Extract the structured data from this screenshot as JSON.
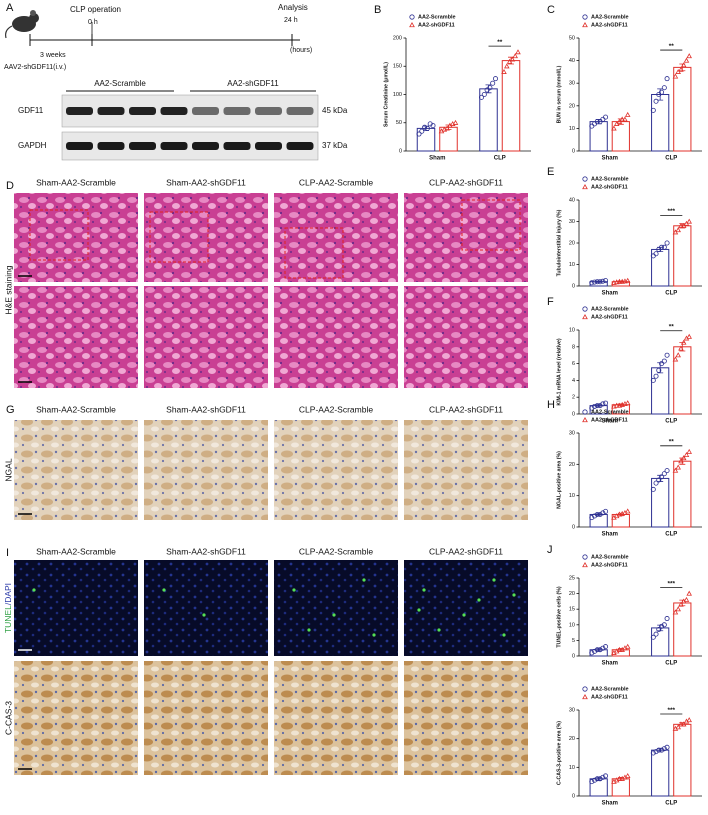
{
  "panel_labels": [
    "A",
    "D",
    "G",
    "I"
  ],
  "timeline": {
    "event": "CLP operation",
    "start": "0 h",
    "end_event": "Analysis",
    "end": "24 h",
    "unit": "(hours)",
    "interval": "3 weeks",
    "treatment": "AAV2-shGDF11(i.v.)"
  },
  "western_blot": {
    "groups": [
      "AA2-Scramble",
      "AA2-shGDF11"
    ],
    "proteins": [
      "GDF11",
      "GAPDH"
    ],
    "sizes": [
      "45 kDa",
      "37 kDa"
    ]
  },
  "micrographs": {
    "columns": [
      "Sham-AA2-Scramble",
      "Sham-AA2-shGDF11",
      "CLP-AA2-Scramble",
      "CLP-AA2-shGDF11"
    ],
    "rows": [
      "H&E staining",
      "NGAL",
      "TUNEL",
      "/DAPI",
      "C-CAS-3"
    ]
  },
  "chart_data": [
    {
      "type": "bar",
      "panel_label": "B",
      "y_label": "Serum Creatinine (μmol/L)",
      "categories": [
        "Sham",
        "CLP"
      ],
      "ylim": [
        0,
        200
      ],
      "yticks": [
        0,
        50,
        100,
        150,
        200
      ],
      "significance": "**",
      "series": [
        {
          "name": "AA2-Scramble",
          "color": "#2e3192",
          "marker": "circle",
          "values": [
            40,
            110
          ],
          "errors": [
            4,
            7
          ],
          "points": [
            [
              30,
              35,
              42,
              40,
              48,
              45
            ],
            [
              95,
              100,
              108,
              112,
              120,
              128
            ]
          ]
        },
        {
          "name": "AA2-shGDF11",
          "color": "#e0312b",
          "marker": "triangle",
          "values": [
            42,
            160
          ],
          "errors": [
            4,
            6
          ],
          "points": [
            [
              35,
              38,
              40,
              45,
              48,
              50
            ],
            [
              140,
              150,
              158,
              162,
              168,
              175
            ]
          ]
        }
      ]
    },
    {
      "type": "bar",
      "panel_label": "C",
      "y_label": "BUN in serum (mmol/L)",
      "categories": [
        "Sham",
        "CLP"
      ],
      "ylim": [
        0,
        50
      ],
      "yticks": [
        0,
        10,
        20,
        30,
        40,
        50
      ],
      "significance": "**",
      "series": [
        {
          "name": "AA2-Scramble",
          "color": "#2e3192",
          "marker": "circle",
          "values": [
            13,
            25
          ],
          "errors": [
            1,
            2.5
          ],
          "points": [
            [
              11,
              12,
              13,
              13,
              14,
              15
            ],
            [
              18,
              22,
              25,
              26,
              28,
              32
            ]
          ]
        },
        {
          "name": "AA2-shGDF11",
          "color": "#e0312b",
          "marker": "triangle",
          "values": [
            13,
            37
          ],
          "errors": [
            1.2,
            1.5
          ],
          "points": [
            [
              10,
              12,
              13,
              14,
              14,
              16
            ],
            [
              33,
              35,
              36,
              38,
              40,
              42
            ]
          ]
        }
      ]
    },
    {
      "type": "bar",
      "panel_label": "E",
      "y_label": "Tubulointerstitial injury (%)",
      "categories": [
        "Sham",
        "CLP"
      ],
      "ylim": [
        0,
        40
      ],
      "yticks": [
        0,
        10,
        20,
        30,
        40
      ],
      "significance": "***",
      "series": [
        {
          "name": "AA2-Scramble",
          "color": "#2e3192",
          "marker": "circle",
          "values": [
            2,
            17
          ],
          "errors": [
            0.3,
            1
          ],
          "points": [
            [
              1.5,
              1.8,
              2,
              2,
              2.2,
              2.5
            ],
            [
              14,
              15,
              17,
              18,
              18,
              20
            ]
          ]
        },
        {
          "name": "AA2-shGDF11",
          "color": "#e0312b",
          "marker": "triangle",
          "values": [
            2,
            28
          ],
          "errors": [
            0.3,
            1
          ],
          "points": [
            [
              1.5,
              1.8,
              2,
              2,
              2.2,
              2.5
            ],
            [
              25,
              26,
              28,
              28,
              29,
              30
            ]
          ]
        }
      ]
    },
    {
      "type": "bar",
      "panel_label": "F",
      "y_label": "KIM-1 mRNA level (relative)",
      "categories": [
        "Sham",
        "CLP"
      ],
      "ylim": [
        0,
        10
      ],
      "yticks": [
        0,
        2,
        4,
        6,
        8,
        10
      ],
      "significance": "**",
      "series": [
        {
          "name": "AA2-Scramble",
          "color": "#2e3192",
          "marker": "circle",
          "values": [
            1,
            5.5
          ],
          "errors": [
            0.15,
            0.6
          ],
          "points": [
            [
              0.7,
              0.9,
              1,
              1,
              1.2,
              1.3
            ],
            [
              4,
              4.5,
              5.2,
              6,
              6.3,
              7
            ]
          ]
        },
        {
          "name": "AA2-shGDF11",
          "color": "#e0312b",
          "marker": "triangle",
          "values": [
            1.1,
            8
          ],
          "errors": [
            0.1,
            0.5
          ],
          "points": [
            [
              0.9,
              1,
              1,
              1.1,
              1.2,
              1.3
            ],
            [
              6.5,
              7,
              7.8,
              8.5,
              9,
              9.2
            ]
          ]
        }
      ]
    },
    {
      "type": "bar",
      "panel_label": "H",
      "y_label": "NGAL-positive area (%)",
      "categories": [
        "Sham",
        "CLP"
      ],
      "ylim": [
        0,
        30
      ],
      "yticks": [
        0,
        10,
        20,
        30
      ],
      "significance": "**",
      "series": [
        {
          "name": "AA2-Scramble",
          "color": "#2e3192",
          "marker": "circle",
          "values": [
            4,
            15.5
          ],
          "errors": [
            0.4,
            1
          ],
          "points": [
            [
              3,
              3.5,
              4,
              4,
              4.5,
              5
            ],
            [
              12,
              14,
              15,
              16,
              17,
              18
            ]
          ]
        },
        {
          "name": "AA2-shGDF11",
          "color": "#e0312b",
          "marker": "triangle",
          "values": [
            4,
            21
          ],
          "errors": [
            0.4,
            1
          ],
          "points": [
            [
              3,
              3.5,
              4,
              4.2,
              4.5,
              5
            ],
            [
              18,
              19,
              21,
              22,
              23,
              24
            ]
          ]
        }
      ]
    },
    {
      "type": "bar",
      "panel_label": "J",
      "y_label": "TUNEL-positive cells (%)",
      "categories": [
        "Sham",
        "CLP"
      ],
      "ylim": [
        0,
        25
      ],
      "yticks": [
        0,
        5,
        10,
        15,
        20,
        25
      ],
      "significance": "***",
      "series": [
        {
          "name": "AA2-Scramble",
          "color": "#2e3192",
          "marker": "circle",
          "values": [
            2,
            9
          ],
          "errors": [
            0.4,
            0.9
          ],
          "points": [
            [
              1,
              1.5,
              2,
              2,
              2.5,
              3
            ],
            [
              6,
              7,
              8.5,
              9.5,
              10,
              12
            ]
          ]
        },
        {
          "name": "AA2-shGDF11",
          "color": "#e0312b",
          "marker": "triangle",
          "values": [
            2,
            17
          ],
          "errors": [
            0.4,
            0.9
          ],
          "points": [
            [
              1,
              1.5,
              2,
              2,
              2.5,
              3
            ],
            [
              14,
              15,
              16.5,
              17.5,
              18,
              20
            ]
          ]
        }
      ]
    },
    {
      "type": "bar",
      "y_label": "C-CAS-3-positive area (%)",
      "categories": [
        "Sham",
        "CLP"
      ],
      "ylim": [
        0,
        30
      ],
      "yticks": [
        0,
        10,
        20,
        30
      ],
      "significance": "***",
      "series": [
        {
          "name": "AA2-Scramble",
          "color": "#2e3192",
          "marker": "circle",
          "values": [
            6,
            16
          ],
          "errors": [
            0.5,
            0.6
          ],
          "points": [
            [
              5,
              5.5,
              6,
              6,
              6.5,
              7
            ],
            [
              15,
              15.5,
              16,
              16,
              16.5,
              17
            ]
          ]
        },
        {
          "name": "AA2-shGDF11",
          "color": "#e0312b",
          "marker": "triangle",
          "values": [
            6,
            25
          ],
          "errors": [
            0.5,
            0.6
          ],
          "points": [
            [
              5,
              5.5,
              6,
              6,
              6.5,
              7
            ],
            [
              23.5,
              24,
              25,
              25,
              26,
              26.5
            ]
          ]
        }
      ]
    }
  ]
}
